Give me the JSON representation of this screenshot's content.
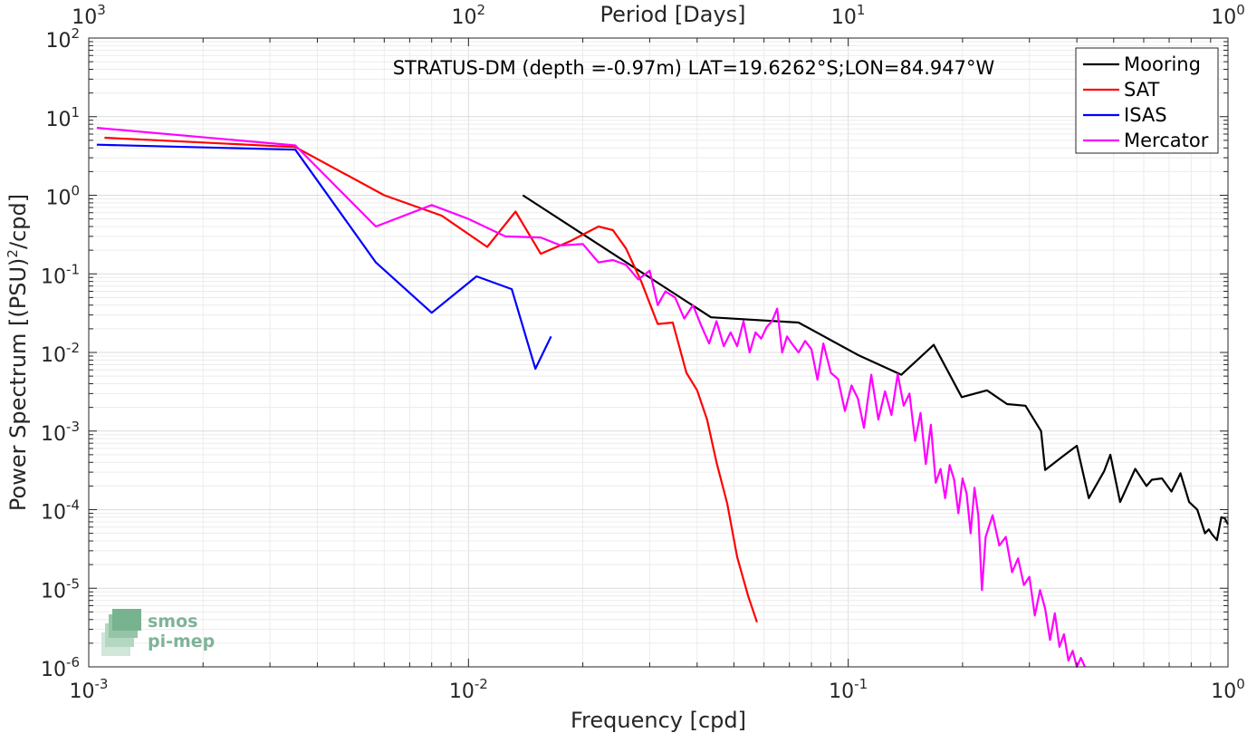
{
  "chart_data": {
    "type": "line",
    "title": "",
    "annotation": "STRATUS-DM (depth =-0.97m) LAT=19.6262°S;LON=84.947°W",
    "xlabel": "Frequency [cpd]",
    "ylabel": "Power Spectrum [(PSU)²/cpd]",
    "ylabel_base": "Power Spectrum [(PSU)",
    "ylabel_sup": "2",
    "ylabel_tail": "/cpd]",
    "top_xlabel": "Period [Days]",
    "xscale": "log",
    "yscale": "log",
    "xlim": [
      0.001,
      1
    ],
    "ylim": [
      1e-06,
      100
    ],
    "grid": true,
    "legend_position": "top-right",
    "x_ticks": [
      {
        "value": 0.001,
        "base": "10",
        "exp": "-3"
      },
      {
        "value": 0.01,
        "base": "10",
        "exp": "-2"
      },
      {
        "value": 0.1,
        "base": "10",
        "exp": "-1"
      },
      {
        "value": 1,
        "base": "10",
        "exp": "0"
      }
    ],
    "y_ticks": [
      {
        "value": 1e-06,
        "base": "10",
        "exp": "-6"
      },
      {
        "value": 1e-05,
        "base": "10",
        "exp": "-5"
      },
      {
        "value": 0.0001,
        "base": "10",
        "exp": "-4"
      },
      {
        "value": 0.001,
        "base": "10",
        "exp": "-3"
      },
      {
        "value": 0.01,
        "base": "10",
        "exp": "-2"
      },
      {
        "value": 0.1,
        "base": "10",
        "exp": "-1"
      },
      {
        "value": 1,
        "base": "10",
        "exp": "0"
      },
      {
        "value": 10,
        "base": "10",
        "exp": "1"
      },
      {
        "value": 100,
        "base": "10",
        "exp": "2"
      }
    ],
    "top_ticks": [
      {
        "freq": 0.001,
        "base": "10",
        "exp": "3"
      },
      {
        "freq": 0.01,
        "base": "10",
        "exp": "2"
      },
      {
        "freq": 0.1,
        "base": "10",
        "exp": "1"
      },
      {
        "freq": 1,
        "base": "10",
        "exp": "0"
      }
    ],
    "series": [
      {
        "name": "Mooring",
        "color": "#000000",
        "x": [
          0.0139,
          0.0435,
          0.074,
          0.106,
          0.138,
          0.168,
          0.199,
          0.232,
          0.262,
          0.293,
          0.322,
          0.33,
          0.368,
          0.4,
          0.43,
          0.472,
          0.49,
          0.52,
          0.57,
          0.61,
          0.63,
          0.67,
          0.71,
          0.75,
          0.79,
          0.83,
          0.87,
          0.89,
          0.91,
          0.935,
          0.96,
          0.98,
          1.0
        ],
        "y": [
          1.0,
          0.028,
          0.024,
          0.0093,
          0.0052,
          0.0125,
          0.0027,
          0.0033,
          0.0022,
          0.0021,
          0.001,
          0.00032,
          0.00048,
          0.00065,
          0.00014,
          0.00031,
          0.0005,
          0.000125,
          0.00033,
          0.0002,
          0.00024,
          0.00025,
          0.00017,
          0.00029,
          0.000125,
          0.0001,
          5e-05,
          5.6e-05,
          4.8e-05,
          4.1e-05,
          8e-05,
          7.8e-05,
          6.5e-05
        ]
      },
      {
        "name": "SAT",
        "color": "#ff0000",
        "x": [
          0.0011,
          0.0035,
          0.006,
          0.0085,
          0.0112,
          0.0133,
          0.0155,
          0.0185,
          0.022,
          0.024,
          0.026,
          0.0285,
          0.0315,
          0.0345,
          0.0375,
          0.04,
          0.0425,
          0.045,
          0.048,
          0.051,
          0.0545,
          0.0575
        ],
        "y": [
          5.4,
          4.1,
          1.0,
          0.55,
          0.22,
          0.62,
          0.18,
          0.26,
          0.4,
          0.36,
          0.21,
          0.08,
          0.023,
          0.024,
          0.0055,
          0.0033,
          0.0014,
          0.0004,
          0.00012,
          2.5e-05,
          8e-06,
          3.7e-06
        ]
      },
      {
        "name": "ISAS",
        "color": "#0000ff",
        "x": [
          0.00105,
          0.0035,
          0.0057,
          0.008,
          0.0105,
          0.013,
          0.015,
          0.0165
        ],
        "y": [
          4.4,
          3.8,
          0.14,
          0.032,
          0.093,
          0.064,
          0.0062,
          0.016
        ]
      },
      {
        "name": "Mercator",
        "color": "#ff00ff",
        "x": [
          0.00105,
          0.0035,
          0.0057,
          0.008,
          0.01,
          0.0125,
          0.0155,
          0.0175,
          0.02,
          0.022,
          0.024,
          0.026,
          0.028,
          0.03,
          0.0315,
          0.033,
          0.035,
          0.037,
          0.039,
          0.041,
          0.043,
          0.045,
          0.047,
          0.049,
          0.051,
          0.053,
          0.055,
          0.057,
          0.059,
          0.061,
          0.063,
          0.065,
          0.067,
          0.069,
          0.071,
          0.074,
          0.077,
          0.08,
          0.083,
          0.086,
          0.09,
          0.094,
          0.098,
          0.102,
          0.106,
          0.11,
          0.115,
          0.12,
          0.125,
          0.13,
          0.135,
          0.14,
          0.145,
          0.15,
          0.155,
          0.16,
          0.165,
          0.17,
          0.175,
          0.18,
          0.185,
          0.19,
          0.195,
          0.2,
          0.205,
          0.21,
          0.215,
          0.22,
          0.225,
          0.23,
          0.24,
          0.25,
          0.26,
          0.27,
          0.28,
          0.29,
          0.3,
          0.31,
          0.32,
          0.33,
          0.34,
          0.35,
          0.36,
          0.37,
          0.38,
          0.39,
          0.4,
          0.41,
          0.42
        ],
        "y": [
          7.2,
          4.3,
          0.4,
          0.75,
          0.5,
          0.3,
          0.29,
          0.23,
          0.24,
          0.14,
          0.15,
          0.13,
          0.085,
          0.11,
          0.04,
          0.06,
          0.05,
          0.027,
          0.04,
          0.022,
          0.013,
          0.025,
          0.012,
          0.018,
          0.012,
          0.025,
          0.01,
          0.018,
          0.015,
          0.021,
          0.025,
          0.036,
          0.01,
          0.016,
          0.013,
          0.01,
          0.014,
          0.011,
          0.0045,
          0.013,
          0.0055,
          0.0046,
          0.0018,
          0.0038,
          0.0026,
          0.0011,
          0.0052,
          0.0014,
          0.0032,
          0.0016,
          0.0053,
          0.0021,
          0.003,
          0.00075,
          0.0017,
          0.00038,
          0.0012,
          0.00022,
          0.00033,
          0.00014,
          0.00037,
          0.00024,
          9e-05,
          0.00025,
          0.00016,
          5e-05,
          0.00019,
          8.5e-05,
          9.5e-06,
          4.5e-05,
          8.5e-05,
          3.5e-05,
          4.5e-05,
          1.6e-05,
          2.4e-05,
          1.1e-05,
          1.4e-05,
          4.5e-06,
          9.5e-06,
          5.5e-06,
          2.2e-06,
          4.8e-06,
          1.8e-06,
          2.6e-06,
          1.2e-06,
          1.6e-06,
          1e-06,
          1.3e-06,
          1e-06
        ]
      }
    ],
    "watermark": {
      "line1": "smos",
      "line2": "pi-mep"
    }
  }
}
